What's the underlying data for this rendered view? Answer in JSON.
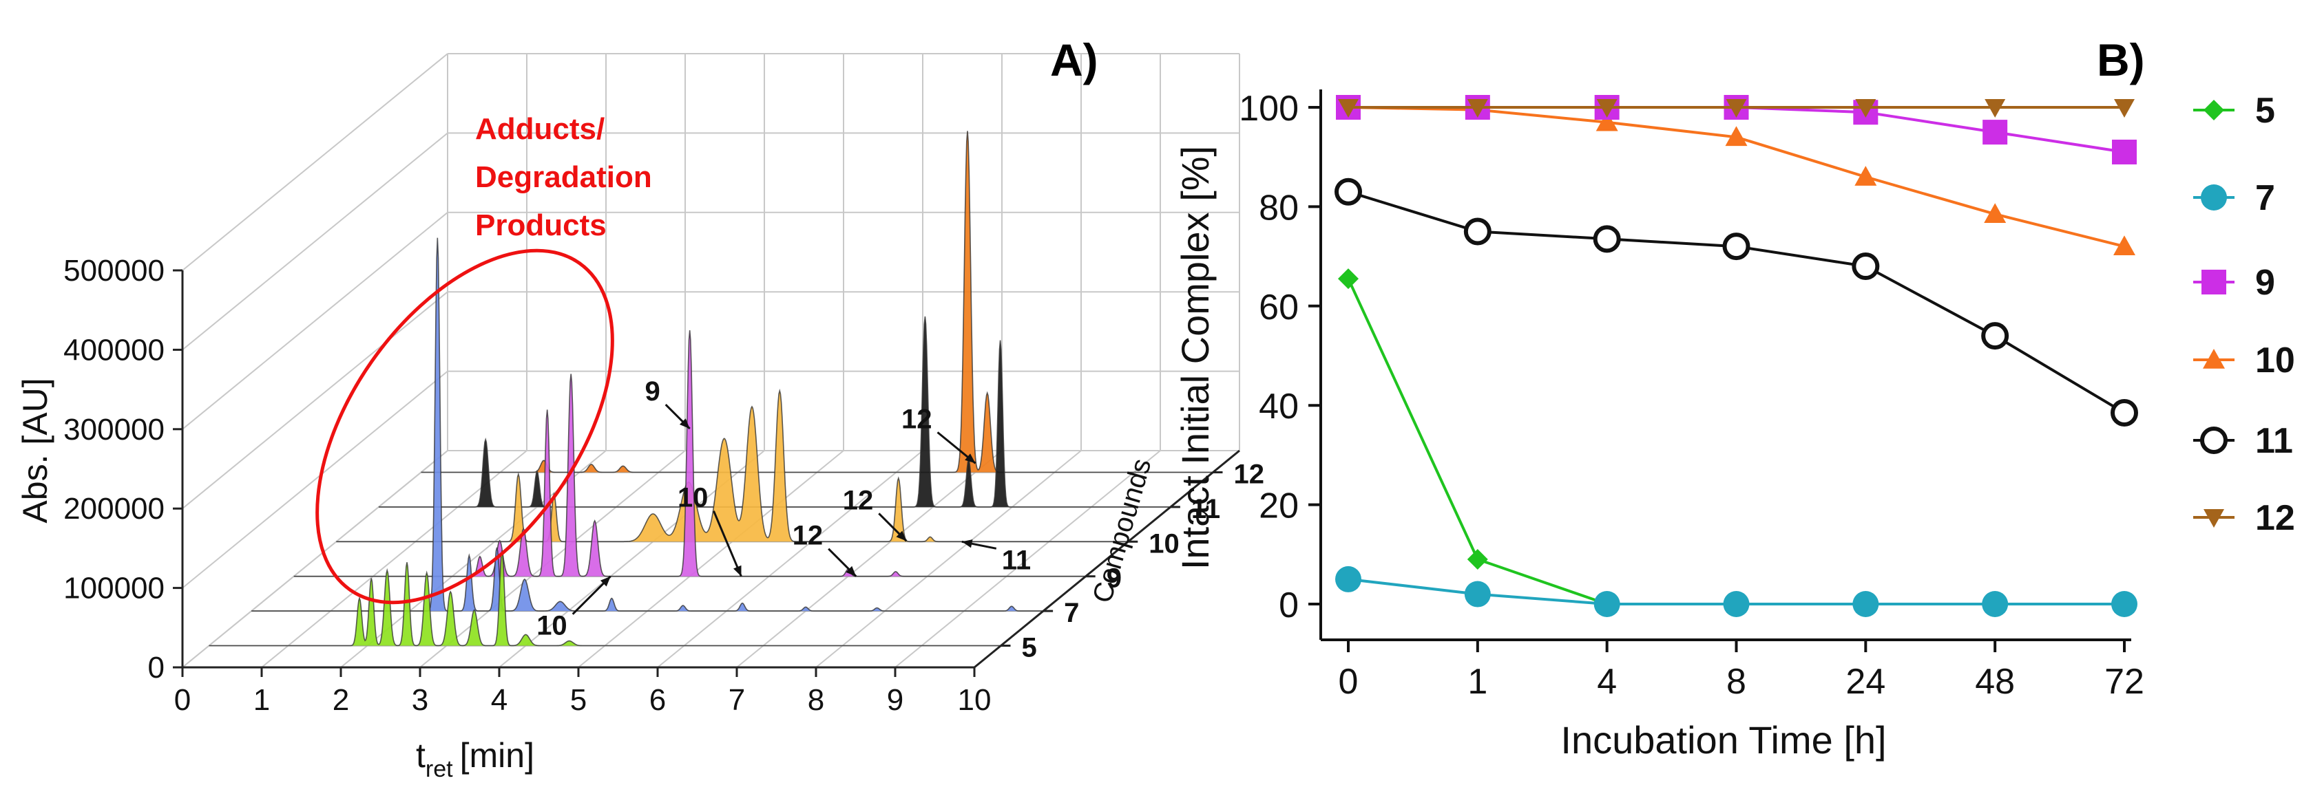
{
  "chart_data": [
    {
      "type": "area",
      "panel_label": "A)",
      "title": "",
      "xlabel_main": "t",
      "xlabel_sub": "ret",
      "xlabel_unit": "[min]",
      "ylabel": "Abs. [AU]",
      "zlabel": "Compounds",
      "xlim": [
        0,
        10
      ],
      "ylim": [
        0,
        500000
      ],
      "xticks": [
        "0",
        "1",
        "2",
        "3",
        "4",
        "5",
        "6",
        "7",
        "8",
        "9",
        "10"
      ],
      "yticks": [
        "0",
        "100000",
        "200000",
        "300000",
        "400000",
        "500000"
      ],
      "annotation": [
        "Adducts/",
        "Degradation",
        "Products"
      ],
      "arrow_labels": [
        {
          "text": "10",
          "row": 2,
          "x": 5.65
        },
        {
          "text": "10",
          "row": 2,
          "x": 4.0
        },
        {
          "text": "9",
          "row": 2,
          "x": 5.0
        },
        {
          "text": "12",
          "row": 2,
          "x": 7.1
        },
        {
          "text": "12",
          "row": 3,
          "x": 7.2
        },
        {
          "text": "11",
          "row": 3,
          "x": 7.9
        },
        {
          "text": "12",
          "row": 5,
          "x": 7.0
        }
      ],
      "series": [
        {
          "name": "5",
          "color": "#8ee21f",
          "peaks": [
            [
              1.9,
              60000,
              0.03
            ],
            [
              2.05,
              85000,
              0.03
            ],
            [
              2.25,
              95000,
              0.035
            ],
            [
              2.5,
              105000,
              0.03
            ],
            [
              2.75,
              92000,
              0.035
            ],
            [
              3.05,
              68000,
              0.04
            ],
            [
              3.35,
              45000,
              0.04
            ],
            [
              3.7,
              120000,
              0.03
            ],
            [
              4.0,
              14000,
              0.05
            ],
            [
              4.55,
              6000,
              0.05
            ]
          ]
        },
        {
          "name": "7",
          "color": "#6f8ee8",
          "peaks": [
            [
              2.35,
              470000,
              0.03
            ],
            [
              2.75,
              70000,
              0.03
            ],
            [
              3.1,
              80000,
              0.03
            ],
            [
              3.45,
              40000,
              0.05
            ],
            [
              3.9,
              12000,
              0.06
            ],
            [
              4.55,
              16000,
              0.03
            ],
            [
              5.45,
              7000,
              0.03
            ],
            [
              6.2,
              10000,
              0.03
            ],
            [
              7.0,
              5000,
              0.03
            ],
            [
              7.9,
              4000,
              0.03
            ],
            [
              9.6,
              6000,
              0.03
            ]
          ]
        },
        {
          "name": "9",
          "color": "#d561e6",
          "peaks": [
            [
              2.35,
              25000,
              0.03
            ],
            [
              2.6,
              45000,
              0.04
            ],
            [
              2.9,
              60000,
              0.04
            ],
            [
              3.2,
              210000,
              0.03
            ],
            [
              3.5,
              255000,
              0.035
            ],
            [
              3.8,
              70000,
              0.04
            ],
            [
              5.0,
              310000,
              0.035
            ],
            [
              7.0,
              9000,
              0.03
            ],
            [
              7.6,
              6000,
              0.03
            ]
          ]
        },
        {
          "name": "10",
          "color": "#f7b941",
          "peaks": [
            [
              2.3,
              85000,
              0.035
            ],
            [
              2.75,
              60000,
              0.03
            ],
            [
              4.0,
              35000,
              0.1
            ],
            [
              4.45,
              75000,
              0.1
            ],
            [
              4.9,
              130000,
              0.09
            ],
            [
              5.25,
              170000,
              0.07
            ],
            [
              5.6,
              190000,
              0.05
            ],
            [
              7.1,
              80000,
              0.035
            ],
            [
              7.5,
              6000,
              0.03
            ]
          ]
        },
        {
          "name": "11",
          "color": "#1a1a1a",
          "peaks": [
            [
              1.35,
              85000,
              0.035
            ],
            [
              2.0,
              45000,
              0.03
            ],
            [
              6.9,
              240000,
              0.035
            ],
            [
              7.45,
              60000,
              0.03
            ],
            [
              7.85,
              210000,
              0.03
            ]
          ]
        },
        {
          "name": "12",
          "color": "#f07d1b",
          "peaks": [
            [
              1.55,
              15000,
              0.04
            ],
            [
              2.15,
              10000,
              0.04
            ],
            [
              2.55,
              8000,
              0.04
            ],
            [
              6.9,
              430000,
              0.04
            ],
            [
              7.15,
              100000,
              0.04
            ]
          ]
        }
      ]
    },
    {
      "type": "line",
      "panel_label": "B)",
      "title": "",
      "xlabel": "Incubation Time [h]",
      "ylabel": "Intact Initial Complex [%]",
      "categories": [
        "0",
        "1",
        "4",
        "8",
        "24",
        "48",
        "72"
      ],
      "ylim": [
        0,
        100
      ],
      "yticks": [
        "0",
        "20",
        "40",
        "60",
        "80",
        "100"
      ],
      "legend_position": "right",
      "series": [
        {
          "name": "5",
          "marker": "diamond",
          "color": "#1fc41f",
          "values": [
            65.5,
            9,
            0,
            0,
            0,
            0,
            0
          ]
        },
        {
          "name": "7",
          "marker": "circle",
          "color": "#21a5be",
          "values": [
            5,
            2,
            0,
            0,
            0,
            0,
            0
          ]
        },
        {
          "name": "9",
          "marker": "square",
          "color": "#cc2ee6",
          "values": [
            100,
            100,
            100,
            100,
            99,
            95,
            91
          ]
        },
        {
          "name": "10",
          "marker": "triangle-up",
          "color": "#f7731d",
          "values": [
            100,
            99.5,
            97,
            94,
            86,
            78.5,
            72
          ]
        },
        {
          "name": "11",
          "marker": "open-circle",
          "color": "#111111",
          "values": [
            83,
            75,
            73.5,
            72,
            68,
            54,
            38.5
          ]
        },
        {
          "name": "12",
          "marker": "triangle-down",
          "color": "#a4641b",
          "values": [
            100,
            100,
            100,
            100,
            100,
            100,
            100
          ]
        }
      ]
    }
  ]
}
